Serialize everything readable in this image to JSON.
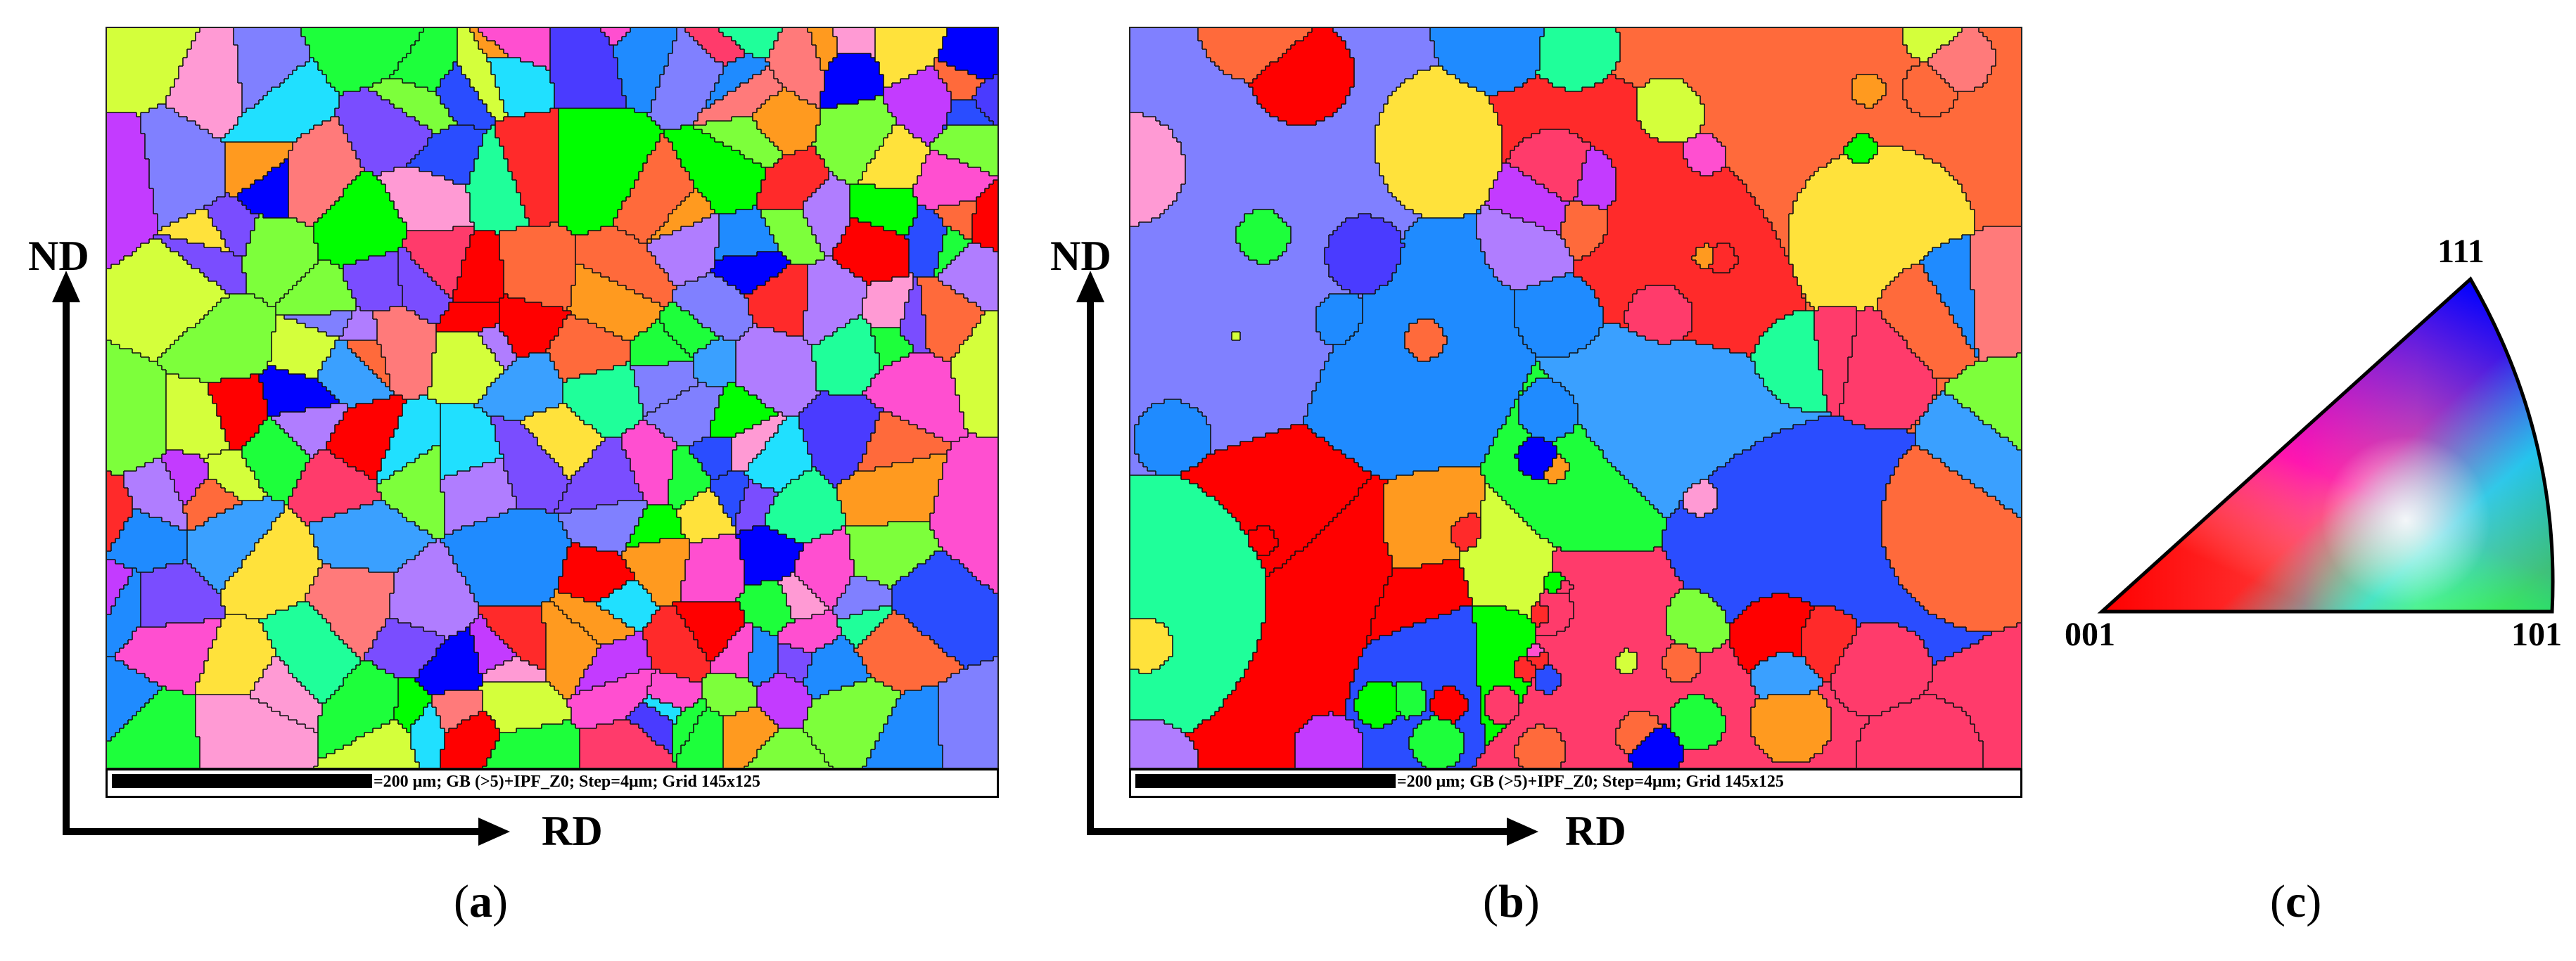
{
  "panels": [
    {
      "id": "a",
      "label_open": "(",
      "label_letter": "a",
      "label_close": ")",
      "scalebar_text": "=200 μm; GB (>5)+IPF_Z0; Step=4μm; Grid 145x125",
      "axis_y": "ND",
      "axis_x": "RD"
    },
    {
      "id": "b",
      "label_open": "(",
      "label_letter": "b",
      "label_close": ")",
      "scalebar_text": "=200 μm; GB (>5)+IPF_Z0; Step=4μm; Grid 145x125",
      "axis_y": "ND",
      "axis_x": "RD"
    },
    {
      "id": "c",
      "label_open": "(",
      "label_letter": "c",
      "label_close": ")"
    }
  ],
  "ipf_legend": {
    "corner_001": "001",
    "corner_101": "101",
    "corner_111": "111",
    "colors": {
      "001": "#ff0000",
      "101": "#00ff00",
      "111": "#0000ff"
    }
  },
  "grain_palette": [
    "#ff2a2a",
    "#ff3b6b",
    "#ff4fd0",
    "#c33bff",
    "#7a4dff",
    "#4a3bff",
    "#2a4dff",
    "#1f8bff",
    "#3aa0ff",
    "#20e0ff",
    "#1fff9a",
    "#1dff3b",
    "#7dff3b",
    "#d4ff3b",
    "#ffe23b",
    "#ff9a1f",
    "#ff6a3b",
    "#ff7a7a",
    "#ff9ad4",
    "#b07dff",
    "#8080ff",
    "#00ff00",
    "#0000ff",
    "#ff0000"
  ]
}
